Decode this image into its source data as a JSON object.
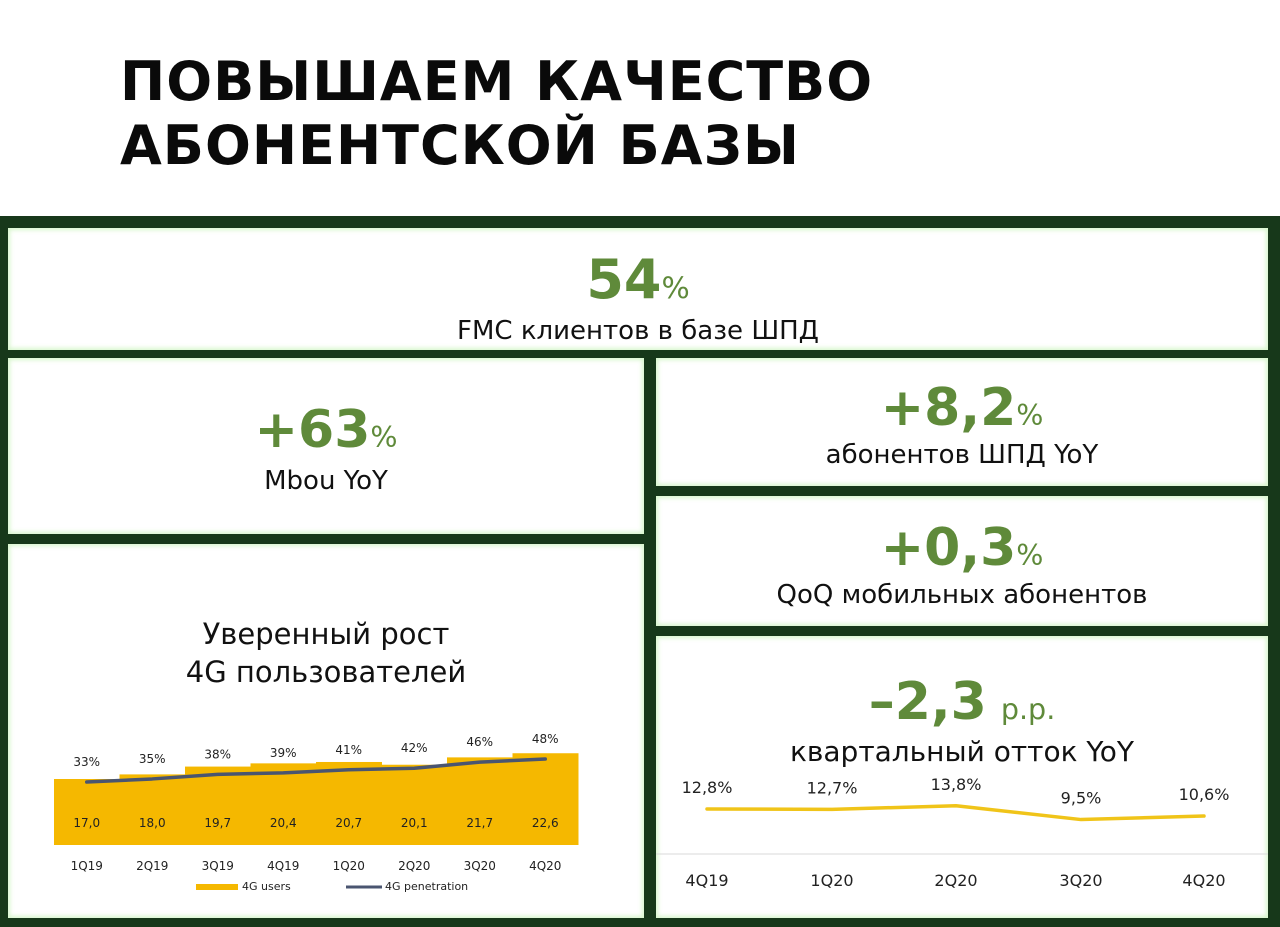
{
  "header": {
    "title_line1": "ПОВЫШАЕМ КАЧЕСТВО",
    "title_line2": "АБОНЕНТСКОЙ БАЗЫ"
  },
  "kpi_fmc": {
    "value": "54",
    "unit": "%",
    "label": "FMC клиентов в базе ШПД"
  },
  "kpi_mbou": {
    "value": "+63",
    "unit": "%",
    "label": "Mbou YoY"
  },
  "kpi_bb": {
    "value": "+8,2",
    "unit": "%",
    "label": "абонентов ШПД YoY"
  },
  "kpi_mobile": {
    "value": "+0,3",
    "unit": "%",
    "label": "QoQ мобильных абонентов"
  },
  "kpi_churn": {
    "value": "–2,3",
    "unit": "p.p.",
    "label": "квартальный отток YoY"
  },
  "colors": {
    "accent_green": "#5f8a3a",
    "frame_green": "#17381a",
    "bar_yellow": "#f5b800",
    "line_navy": "#4a5570"
  },
  "chart_4g": {
    "title_line1": "Уверенный рост",
    "title_line2": "4G пользователей"
  },
  "chart_data": [
    {
      "type": "bar",
      "categories": [
        "1Q19",
        "2Q19",
        "3Q19",
        "4Q19",
        "1Q20",
        "2Q20",
        "3Q20",
        "4Q20"
      ],
      "series": [
        {
          "name": "4G users",
          "values": [
            17.0,
            18.0,
            19.7,
            20.4,
            20.7,
            20.1,
            21.7,
            22.6
          ],
          "labels": [
            "17,0",
            "18,0",
            "19,7",
            "20,4",
            "20,7",
            "20,1",
            "21,7",
            "22,6"
          ],
          "kind": "area-bar"
        },
        {
          "name": "4G penetration",
          "values": [
            33,
            35,
            38,
            39,
            41,
            42,
            46,
            48
          ],
          "labels": [
            "33%",
            "35%",
            "38%",
            "39%",
            "41%",
            "42%",
            "46%",
            "48%"
          ],
          "kind": "line"
        }
      ],
      "legend": "bottom"
    },
    {
      "type": "line",
      "categories": [
        "4Q19",
        "1Q20",
        "2Q20",
        "3Q20",
        "4Q20"
      ],
      "series": [
        {
          "values": [
            12.8,
            12.7,
            13.8,
            9.5,
            10.6
          ],
          "labels": [
            "12,8%",
            "12,7%",
            "13,8%",
            "9,5%",
            "10,6%"
          ]
        }
      ]
    }
  ]
}
